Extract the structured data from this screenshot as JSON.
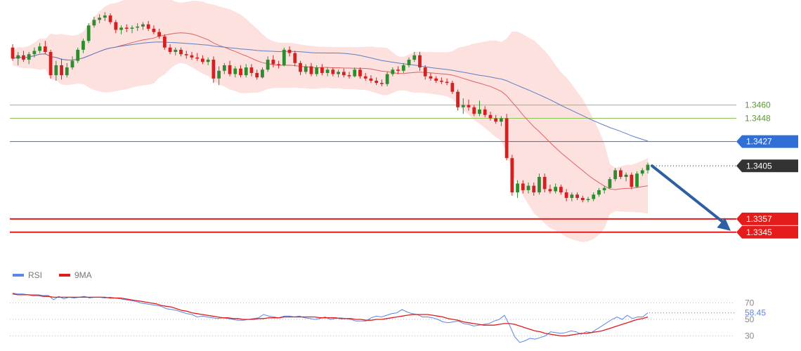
{
  "chart_data": [
    {
      "type": "candlestick",
      "instrument": "",
      "title": "",
      "ylim": [
        1.3315,
        1.3555
      ],
      "level_lines": [
        {
          "value": 1.346,
          "label": "1.3460",
          "color": "#8fc25f",
          "badge": false
        },
        {
          "value": 1.3448,
          "label": "1.3448",
          "color": "#8fc25f",
          "badge": false
        },
        {
          "value": 1.3427,
          "label": "1.3427",
          "color": "#2f6fd6",
          "badge": true
        },
        {
          "value": 1.3405,
          "label": "1.3405",
          "color": "#333333",
          "badge": true,
          "dotted": true
        },
        {
          "value": 1.3357,
          "label": "1.3357",
          "color": "#e51c1c",
          "badge": true
        },
        {
          "value": 1.3345,
          "label": "1.3345",
          "color": "#e51c1c",
          "badge": true
        }
      ],
      "forecast_arrow": {
        "from_value": 1.3405,
        "to_value": 1.3345,
        "color": "#2e5fa0"
      },
      "colors": {
        "up": "#2e8b2e",
        "down": "#d42020",
        "ma_fast": "#e06060",
        "ma_slow": "#5e7fc4",
        "band_fill": "#fbd7d4"
      },
      "candles": [
        [
          1.3512,
          1.3515,
          1.35,
          1.3502
        ],
        [
          1.3502,
          1.3508,
          1.3496,
          1.3505
        ],
        [
          1.3505,
          1.3509,
          1.3499,
          1.3501
        ],
        [
          1.3501,
          1.3508,
          1.3497,
          1.3506
        ],
        [
          1.3506,
          1.3512,
          1.3503,
          1.3509
        ],
        [
          1.3509,
          1.3516,
          1.3507,
          1.3513
        ],
        [
          1.3513,
          1.3518,
          1.3506,
          1.3508
        ],
        [
          1.3508,
          1.351,
          1.3484,
          1.3487
        ],
        [
          1.3487,
          1.35,
          1.3482,
          1.3496
        ],
        [
          1.3496,
          1.3502,
          1.3483,
          1.3487
        ],
        [
          1.3487,
          1.3498,
          1.3485,
          1.3494
        ],
        [
          1.3494,
          1.3504,
          1.3492,
          1.35
        ],
        [
          1.35,
          1.3512,
          1.3498,
          1.351
        ],
        [
          1.351,
          1.352,
          1.3507,
          1.3518
        ],
        [
          1.3518,
          1.3534,
          1.3516,
          1.3532
        ],
        [
          1.3532,
          1.354,
          1.353,
          1.3537
        ],
        [
          1.3537,
          1.3542,
          1.3534,
          1.3539
        ],
        [
          1.3539,
          1.3544,
          1.3536,
          1.3541
        ],
        [
          1.3541,
          1.3543,
          1.3533,
          1.3535
        ],
        [
          1.3535,
          1.3537,
          1.3525,
          1.3528
        ],
        [
          1.3528,
          1.3532,
          1.3524,
          1.353
        ],
        [
          1.353,
          1.3533,
          1.3526,
          1.3529
        ],
        [
          1.3529,
          1.3532,
          1.3525,
          1.353
        ],
        [
          1.353,
          1.3534,
          1.3527,
          1.3531
        ],
        [
          1.3531,
          1.3535,
          1.3528,
          1.3533
        ],
        [
          1.3533,
          1.3536,
          1.3527,
          1.3529
        ],
        [
          1.3529,
          1.3532,
          1.3524,
          1.3526
        ],
        [
          1.3526,
          1.3529,
          1.352,
          1.3522
        ],
        [
          1.3522,
          1.3524,
          1.351,
          1.3512
        ],
        [
          1.3512,
          1.3515,
          1.3506,
          1.3508
        ],
        [
          1.3508,
          1.3512,
          1.3505,
          1.351
        ],
        [
          1.351,
          1.3512,
          1.3504,
          1.3506
        ],
        [
          1.3506,
          1.3509,
          1.3502,
          1.3505
        ],
        [
          1.3505,
          1.3508,
          1.3501,
          1.3503
        ],
        [
          1.3503,
          1.3507,
          1.35,
          1.3502
        ],
        [
          1.3502,
          1.3505,
          1.3497,
          1.3499
        ],
        [
          1.3499,
          1.3503,
          1.3496,
          1.3501
        ],
        [
          1.3501,
          1.3504,
          1.348,
          1.3484
        ],
        [
          1.3484,
          1.3495,
          1.3478,
          1.3491
        ],
        [
          1.3491,
          1.3498,
          1.3488,
          1.3496
        ],
        [
          1.3496,
          1.35,
          1.3486,
          1.3488
        ],
        [
          1.3488,
          1.3495,
          1.3485,
          1.3493
        ],
        [
          1.3493,
          1.3496,
          1.3485,
          1.3487
        ],
        [
          1.3487,
          1.3497,
          1.3485,
          1.3494
        ],
        [
          1.3494,
          1.3497,
          1.3486,
          1.3489
        ],
        [
          1.3489,
          1.3492,
          1.3483,
          1.3485
        ],
        [
          1.3485,
          1.3494,
          1.3484,
          1.3492
        ],
        [
          1.3492,
          1.3504,
          1.349,
          1.3501
        ],
        [
          1.3501,
          1.3505,
          1.3494,
          1.3497
        ],
        [
          1.3497,
          1.35,
          1.3493,
          1.3496
        ],
        [
          1.3496,
          1.3512,
          1.3495,
          1.351
        ],
        [
          1.351,
          1.3513,
          1.3504,
          1.3507
        ],
        [
          1.3507,
          1.3509,
          1.3495,
          1.3498
        ],
        [
          1.3498,
          1.35,
          1.3487,
          1.349
        ],
        [
          1.349,
          1.3497,
          1.3488,
          1.3495
        ],
        [
          1.3495,
          1.3498,
          1.3486,
          1.3488
        ],
        [
          1.3488,
          1.3496,
          1.3486,
          1.3494
        ],
        [
          1.3494,
          1.3497,
          1.3487,
          1.3489
        ],
        [
          1.3489,
          1.3494,
          1.3486,
          1.3492
        ],
        [
          1.3492,
          1.3494,
          1.3486,
          1.3488
        ],
        [
          1.3488,
          1.3492,
          1.3485,
          1.349
        ],
        [
          1.349,
          1.3493,
          1.3485,
          1.3487
        ],
        [
          1.3487,
          1.349,
          1.3484,
          1.3486
        ],
        [
          1.3486,
          1.3494,
          1.3485,
          1.3492
        ],
        [
          1.3492,
          1.3494,
          1.3484,
          1.3486
        ],
        [
          1.3486,
          1.3489,
          1.3482,
          1.3484
        ],
        [
          1.3484,
          1.3487,
          1.348,
          1.3482
        ],
        [
          1.3482,
          1.3485,
          1.3478,
          1.348
        ],
        [
          1.348,
          1.3483,
          1.3477,
          1.3479
        ],
        [
          1.3479,
          1.349,
          1.3477,
          1.3488
        ],
        [
          1.3488,
          1.3494,
          1.3486,
          1.3492
        ],
        [
          1.3492,
          1.3495,
          1.3488,
          1.3491
        ],
        [
          1.3491,
          1.3498,
          1.3489,
          1.3496
        ],
        [
          1.3496,
          1.3503,
          1.3494,
          1.3501
        ],
        [
          1.3501,
          1.3508,
          1.3499,
          1.3505
        ],
        [
          1.3505,
          1.3508,
          1.3491,
          1.3494
        ],
        [
          1.3494,
          1.3496,
          1.3483,
          1.3486
        ],
        [
          1.3486,
          1.3489,
          1.3482,
          1.3484
        ],
        [
          1.3484,
          1.3486,
          1.348,
          1.3482
        ],
        [
          1.3482,
          1.3485,
          1.3479,
          1.3481
        ],
        [
          1.3481,
          1.3484,
          1.3478,
          1.348
        ],
        [
          1.348,
          1.3482,
          1.347,
          1.3472
        ],
        [
          1.3472,
          1.3474,
          1.3455,
          1.3458
        ],
        [
          1.3458,
          1.3466,
          1.3452,
          1.346
        ],
        [
          1.346,
          1.3465,
          1.3455,
          1.3458
        ],
        [
          1.3458,
          1.346,
          1.345,
          1.3452
        ],
        [
          1.3452,
          1.3464,
          1.345,
          1.3456
        ],
        [
          1.3456,
          1.3459,
          1.3449,
          1.3451
        ],
        [
          1.3451,
          1.3454,
          1.3446,
          1.3448
        ],
        [
          1.3448,
          1.3451,
          1.3443,
          1.3445
        ],
        [
          1.3445,
          1.345,
          1.3441,
          1.3448
        ],
        [
          1.3448,
          1.3452,
          1.341,
          1.3412
        ],
        [
          1.3412,
          1.3415,
          1.3378,
          1.3381
        ],
        [
          1.3381,
          1.3392,
          1.3376,
          1.3389
        ],
        [
          1.3389,
          1.3392,
          1.338,
          1.3383
        ],
        [
          1.3383,
          1.339,
          1.338,
          1.3387
        ],
        [
          1.3387,
          1.339,
          1.3378,
          1.3381
        ],
        [
          1.3381,
          1.3398,
          1.3379,
          1.3395
        ],
        [
          1.3395,
          1.3398,
          1.3381,
          1.3384
        ],
        [
          1.3384,
          1.3388,
          1.338,
          1.3382
        ],
        [
          1.3382,
          1.3389,
          1.338,
          1.3386
        ],
        [
          1.3386,
          1.3388,
          1.3379,
          1.3381
        ],
        [
          1.3381,
          1.3384,
          1.3373,
          1.3376
        ],
        [
          1.3376,
          1.3381,
          1.3373,
          1.3379
        ],
        [
          1.3379,
          1.3381,
          1.3374,
          1.3376
        ],
        [
          1.3376,
          1.3378,
          1.3372,
          1.3374
        ],
        [
          1.3374,
          1.3377,
          1.3372,
          1.3375
        ],
        [
          1.3375,
          1.3381,
          1.3373,
          1.3379
        ],
        [
          1.3379,
          1.3385,
          1.3377,
          1.3383
        ],
        [
          1.3383,
          1.3387,
          1.338,
          1.3385
        ],
        [
          1.3385,
          1.3395,
          1.3384,
          1.3393
        ],
        [
          1.3393,
          1.3403,
          1.3391,
          1.3401
        ],
        [
          1.3401,
          1.3403,
          1.3393,
          1.3395
        ],
        [
          1.3395,
          1.3399,
          1.3391,
          1.3397
        ],
        [
          1.3397,
          1.3399,
          1.3384,
          1.3386
        ],
        [
          1.3386,
          1.34,
          1.3385,
          1.3398
        ],
        [
          1.3398,
          1.3403,
          1.3396,
          1.3401
        ],
        [
          1.3401,
          1.3408,
          1.3398,
          1.3406
        ]
      ]
    },
    {
      "type": "line",
      "title": "",
      "ylim": [
        15,
        85
      ],
      "reference_lines": [
        70,
        50,
        30
      ],
      "tick_labels": [
        "70",
        "50",
        "30"
      ],
      "last_value_label": "58.45",
      "legend": [
        {
          "label": "RSI",
          "color": "#5b86e5"
        },
        {
          "label": "9MA",
          "color": "#e11b1b"
        }
      ],
      "series": [
        {
          "name": "RSI",
          "values": [
            82,
            81,
            81,
            80,
            80,
            80,
            79,
            79,
            74,
            78,
            75,
            77,
            76,
            77,
            78,
            76,
            77,
            77,
            76,
            77,
            76,
            75,
            74,
            73,
            72,
            70,
            69,
            68,
            67,
            66,
            63,
            62,
            61,
            59,
            57,
            56,
            53,
            54,
            53,
            52,
            51,
            52,
            51,
            50,
            49,
            49,
            50,
            51,
            52,
            56,
            54,
            53,
            52,
            54,
            54,
            53,
            54,
            52,
            51,
            50,
            51,
            53,
            50,
            51,
            52,
            51,
            50,
            48,
            48,
            48,
            52,
            54,
            53,
            55,
            57,
            58,
            62,
            59,
            57,
            56,
            53,
            53,
            52,
            50,
            47,
            46,
            47,
            48,
            45,
            44,
            42,
            43,
            44,
            45,
            48,
            50,
            55,
            43,
            29,
            22,
            24,
            27,
            26,
            28,
            30,
            35,
            34,
            33,
            34,
            36,
            35,
            32,
            35,
            34,
            38,
            42,
            46,
            50,
            53,
            50,
            55,
            51,
            53,
            53,
            58
          ]
        },
        {
          "name": "9MA",
          "values": [
            81,
            80,
            80,
            80,
            79,
            79,
            78,
            78,
            77,
            77,
            77,
            77,
            77,
            77,
            77,
            77,
            77,
            77,
            77,
            76,
            76,
            76,
            75,
            74,
            73,
            72,
            71,
            70,
            69,
            67,
            66,
            65,
            63,
            61,
            60,
            58,
            57,
            56,
            55,
            54,
            53,
            52,
            52,
            51,
            51,
            50,
            50,
            50,
            51,
            51,
            52,
            52,
            52,
            53,
            53,
            53,
            53,
            53,
            53,
            53,
            52,
            52,
            52,
            52,
            51,
            51,
            51,
            50,
            50,
            49,
            49,
            50,
            50,
            51,
            52,
            53,
            54,
            55,
            56,
            56,
            56,
            56,
            55,
            54,
            53,
            51,
            50,
            49,
            47,
            46,
            45,
            44,
            43,
            43,
            43,
            44,
            45,
            45,
            44,
            42,
            40,
            38,
            36,
            35,
            33,
            32,
            31,
            30,
            30,
            31,
            32,
            33,
            33,
            34,
            35,
            36,
            38,
            40,
            42,
            44,
            46,
            48,
            50,
            51,
            53
          ]
        }
      ]
    }
  ]
}
